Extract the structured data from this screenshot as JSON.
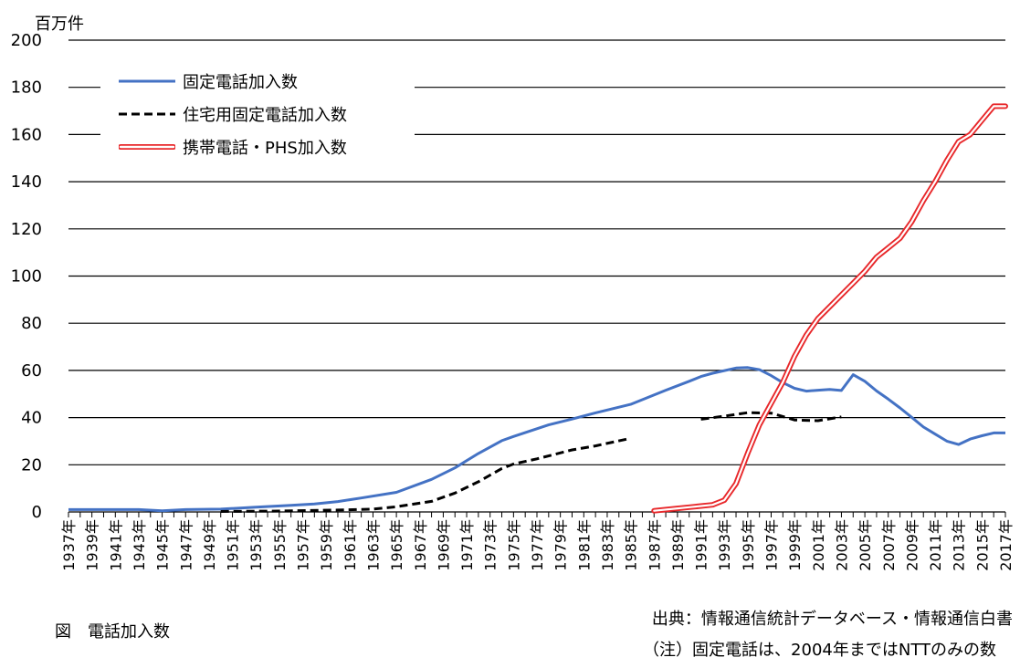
{
  "unit_label": "百万件",
  "figure_caption": "図　電話加入数",
  "source_text": "出典：情報通信統計データベース・情報通信白書",
  "note_text": "（注）固定電話は、2004年まではNTTのみの数",
  "colors": {
    "fixed": "#4472C4",
    "residential": "#000000",
    "mobile": "#E8282B"
  },
  "chart_data": {
    "type": "line",
    "title": "",
    "xlabel": "",
    "ylabel": "百万件",
    "ylim": [
      0,
      200
    ],
    "yticks": [
      0,
      20,
      40,
      60,
      80,
      100,
      120,
      140,
      160,
      180,
      200
    ],
    "grid": true,
    "legend": "top-left",
    "xlim": [
      1937,
      2017
    ],
    "x_tick_labels": [
      "1937年",
      "1939年",
      "1941年",
      "1943年",
      "1945年",
      "1947年",
      "1949年",
      "1951年",
      "1953年",
      "1955年",
      "1957年",
      "1959年",
      "1961年",
      "1963年",
      "1965年",
      "1967年",
      "1969年",
      "1971年",
      "1973年",
      "1975年",
      "1977年",
      "1979年",
      "1981年",
      "1983年",
      "1985年",
      "1987年",
      "1989年",
      "1991年",
      "1993年",
      "1995年",
      "1997年",
      "1999年",
      "2001年",
      "2003年",
      "2005年",
      "2007年",
      "2009年",
      "2011年",
      "2013年",
      "2015年",
      "2017年"
    ],
    "series": [
      {
        "name": "固定電話加入数",
        "style": "solid",
        "x": [
          1937,
          1940,
          1943,
          1945,
          1947,
          1950,
          1953,
          1956,
          1958,
          1960,
          1962,
          1965,
          1968,
          1970,
          1972,
          1974,
          1975,
          1978,
          1980,
          1982,
          1985,
          1988,
          1990,
          1991,
          1992,
          1994,
          1995,
          1996,
          1997,
          1998,
          1999,
          2000,
          2001,
          2002,
          2003,
          2004,
          2005,
          2006,
          2007,
          2008,
          2009,
          2010,
          2011,
          2012,
          2013,
          2014,
          2015,
          2016,
          2017
        ],
        "y": [
          1.0,
          1.0,
          1.0,
          0.5,
          1.0,
          1.2,
          2.0,
          2.8,
          3.4,
          4.4,
          5.9,
          8.3,
          13.8,
          18.7,
          24.8,
          30.2,
          32.0,
          36.9,
          39.4,
          42.0,
          45.6,
          51.6,
          55.4,
          57.4,
          58.8,
          61.0,
          61.2,
          60.3,
          57.8,
          54.8,
          52.4,
          51.2,
          51.6,
          51.9,
          51.5,
          58.2,
          55.4,
          51.3,
          47.8,
          44.1,
          40.1,
          36.0,
          33.0,
          30.0,
          28.6,
          30.9,
          32.3,
          33.5,
          33.5
        ]
      },
      {
        "name": "住宅用固定電話加入数",
        "style": "dashed",
        "segments": [
          {
            "x": [
              1950,
              1955,
              1960,
              1963,
              1965,
              1968,
              1970,
              1972,
              1974,
              1975,
              1977,
              1980,
              1982,
              1985
            ],
            "y": [
              0.2,
              0.4,
              0.8,
              1.2,
              2.2,
              4.5,
              8.0,
              12.8,
              18.4,
              20.3,
              22.5,
              26.3,
              28.0,
              31.2
            ]
          },
          {
            "x": [
              1991,
              1993,
              1995,
              1997,
              1999,
              2001,
              2003
            ],
            "y": [
              39.3,
              40.6,
              42.1,
              41.9,
              39.0,
              38.7,
              40.3
            ]
          }
        ]
      },
      {
        "name": "携帯電話・PHS加入数",
        "style": "double-red",
        "x": [
          1987,
          1989,
          1990,
          1991,
          1992,
          1993,
          1994,
          1995,
          1996,
          1997,
          1998,
          1999,
          2000,
          2001,
          2002,
          2003,
          2004,
          2005,
          2006,
          2007,
          2008,
          2009,
          2010,
          2011,
          2012,
          2013,
          2014,
          2015,
          2016,
          2017
        ],
        "y": [
          0.5,
          1.5,
          2.0,
          2.5,
          3.0,
          5.0,
          12.0,
          25.0,
          37.0,
          46.0,
          55.0,
          66.0,
          75.0,
          82.0,
          87.0,
          92.0,
          97.0,
          102.0,
          108.0,
          112.0,
          116.0,
          123.0,
          132.0,
          140.0,
          149.0,
          157.0,
          160.0,
          166.0,
          172.0,
          172.0
        ]
      }
    ]
  }
}
